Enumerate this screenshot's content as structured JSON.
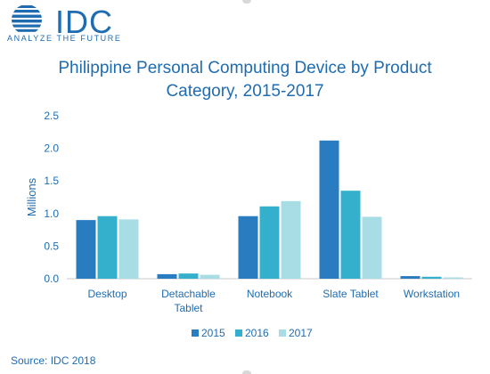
{
  "logo": {
    "word": "IDC",
    "tagline": "ANALYZE THE FUTURE"
  },
  "title_line1": "Philippine Personal Computing Device by Product",
  "title_line2": "Category, 2015-2017",
  "source": "Source: IDC 2018",
  "colors": {
    "brand": "#1f6cb0",
    "s2015": "#2a7cc0",
    "s2016": "#35b0cc",
    "s2017": "#a8dde6"
  },
  "chart_data": {
    "type": "bar",
    "categories": [
      [
        "Desktop"
      ],
      [
        "Detachable",
        "Tablet"
      ],
      [
        "Notebook"
      ],
      [
        "Slate Tablet"
      ],
      [
        "Workstation"
      ]
    ],
    "series": [
      {
        "name": "2015",
        "values": [
          0.9,
          0.07,
          0.96,
          2.12,
          0.04
        ]
      },
      {
        "name": "2016",
        "values": [
          0.96,
          0.08,
          1.11,
          1.35,
          0.03
        ]
      },
      {
        "name": "2017",
        "values": [
          0.91,
          0.06,
          1.19,
          0.95,
          0.02
        ]
      }
    ],
    "ylabel": "Millions",
    "ylim": [
      0,
      2.5
    ],
    "yticks": [
      "0.0",
      "0.5",
      "1.0",
      "1.5",
      "2.0",
      "2.5"
    ],
    "grid": false,
    "legend": "bottom"
  }
}
